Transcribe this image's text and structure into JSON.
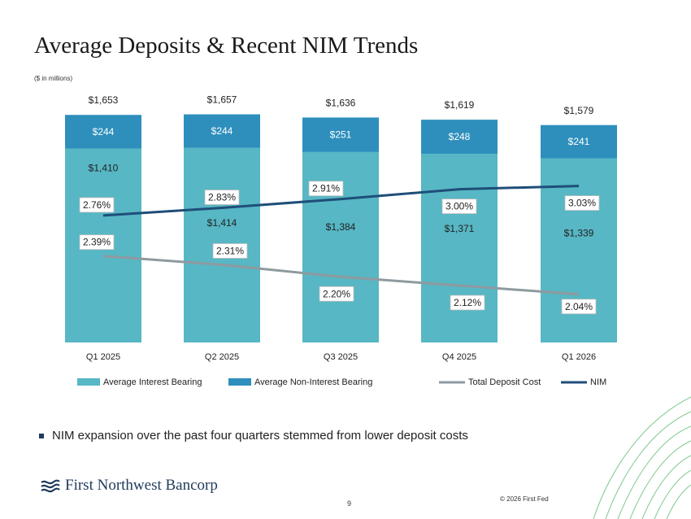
{
  "slide": {
    "title": "Average Deposits & Recent NIM Trends",
    "subtitle": "($ in millions)",
    "bullet": "NIM expansion over the past four quarters stemmed from lower deposit costs",
    "logo_text": "First Northwest Bancorp",
    "page_number": "9",
    "copyright": "© 2026 First Fed",
    "colors": {
      "interest_bearing": "#57b7c4",
      "non_interest_bearing": "#2e8fbd",
      "total_deposit_cost": "#8e9aa0",
      "nim": "#1f4e79",
      "logo": "#1f3b5c",
      "deco_lines": "#7cc88a"
    }
  },
  "chart_data": {
    "type": "bar",
    "stacked": true,
    "categories": [
      "Q1 2025",
      "Q2 2025",
      "Q3 2025",
      "Q4 2025",
      "Q1 2026"
    ],
    "series": [
      {
        "name": "Average Interest Bearing",
        "values": [
          1410,
          1414,
          1384,
          1371,
          1339
        ],
        "labels": [
          "$1,410",
          "$1,414",
          "$1,384",
          "$1,371",
          "$1,339"
        ]
      },
      {
        "name": "Average Non-Interest Bearing",
        "values": [
          244,
          244,
          251,
          248,
          241
        ],
        "labels": [
          "$244",
          "$244",
          "$251",
          "$248",
          "$241"
        ]
      }
    ],
    "totals": {
      "values": [
        1653,
        1657,
        1636,
        1619,
        1579
      ],
      "labels": [
        "$1,653",
        "$1,657",
        "$1,636",
        "$1,619",
        "$1,579"
      ]
    },
    "lines": [
      {
        "name": "Total Deposit Cost",
        "values": [
          2.39,
          2.31,
          2.2,
          2.12,
          2.04
        ],
        "labels": [
          "2.39%",
          "2.31%",
          "2.20%",
          "2.12%",
          "2.04%"
        ]
      },
      {
        "name": "NIM",
        "values": [
          2.76,
          2.83,
          2.91,
          3.0,
          3.03
        ],
        "labels": [
          "2.76%",
          "2.83%",
          "2.91%",
          "3.00%",
          "3.03%"
        ]
      }
    ],
    "ylim": [
      0,
      1750
    ],
    "line_ylim": [
      1.6,
      3.8
    ],
    "legend": "bottom",
    "grid": false
  }
}
